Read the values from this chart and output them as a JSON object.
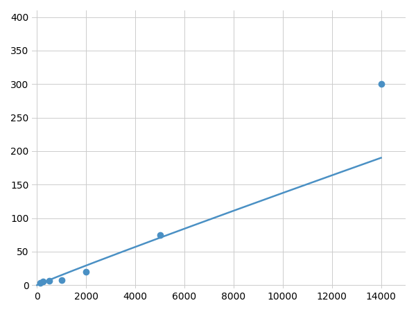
{
  "x_data": [
    0,
    125,
    250,
    500,
    1000,
    2000,
    5000,
    14000
  ],
  "y_data": [
    0,
    3,
    5,
    7,
    8,
    20,
    75,
    300
  ],
  "marker_x": [
    125,
    250,
    500,
    1000,
    2000,
    5000,
    14000
  ],
  "marker_y": [
    3,
    5,
    7,
    8,
    20,
    75,
    300
  ],
  "line_color": "#4A90C4",
  "marker_color": "#4A90C4",
  "xlim": [
    -200,
    15000
  ],
  "ylim": [
    -5,
    410
  ],
  "xticks": [
    0,
    2000,
    4000,
    6000,
    8000,
    10000,
    12000,
    14000
  ],
  "yticks": [
    0,
    50,
    100,
    150,
    200,
    250,
    300,
    350,
    400
  ],
  "grid": true,
  "background_color": "#ffffff",
  "marker_size": 6,
  "line_width": 1.8
}
